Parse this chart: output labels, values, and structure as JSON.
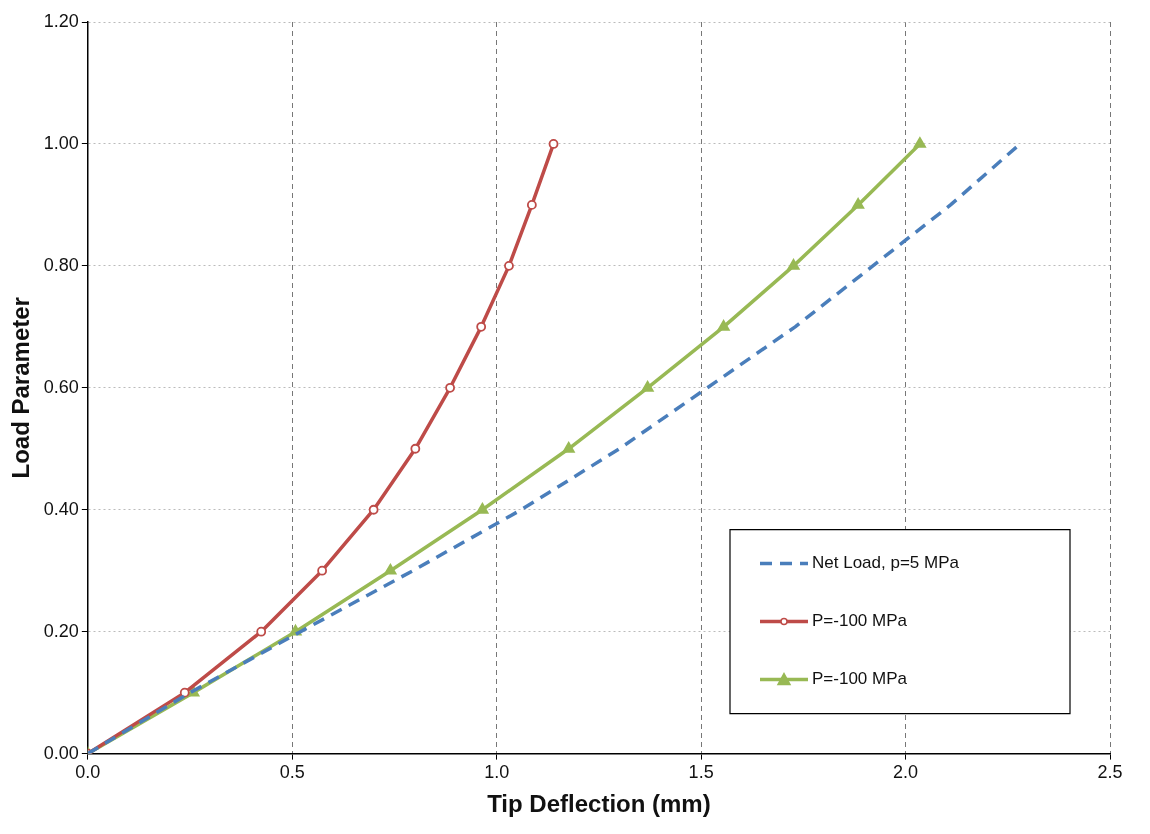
{
  "chart_data": {
    "type": "line",
    "xlabel": "Tip Deflection (mm)",
    "ylabel": "Load Parameter",
    "xlim": [
      0,
      2.5
    ],
    "ylim": [
      0,
      1.2
    ],
    "xticks": [
      {
        "value": 0,
        "label": "0.0"
      },
      {
        "value": 0.5,
        "label": "0.5"
      },
      {
        "value": 1,
        "label": "1.0"
      },
      {
        "value": 1.5,
        "label": "1.5"
      },
      {
        "value": 2,
        "label": "2.0"
      },
      {
        "value": 2.5,
        "label": "2.5"
      }
    ],
    "yticks": [
      {
        "value": 0,
        "label": "0.00"
      },
      {
        "value": 0.2,
        "label": "0.20"
      },
      {
        "value": 0.4,
        "label": "0.40"
      },
      {
        "value": 0.6,
        "label": "0.60"
      },
      {
        "value": 0.8,
        "label": "0.80"
      },
      {
        "value": 1,
        "label": "1.00"
      },
      {
        "value": 1.2,
        "label": "1.20"
      }
    ],
    "grid": true,
    "legend": "bottom right",
    "series": [
      {
        "name": "Net Load, p=5 MPa",
        "color": "#4a7ebb",
        "line_style": "dashed",
        "marker": "none",
        "x": [
          0,
          0.25,
          0.52,
          0.795,
          1.06,
          1.3,
          1.515,
          1.73,
          1.92,
          2.11,
          2.28
        ],
        "values": [
          0,
          0.1,
          0.2,
          0.3,
          0.4,
          0.5,
          0.6,
          0.7,
          0.8,
          0.9,
          1.0
        ]
      },
      {
        "name": "P=-100 MPa",
        "color": "#be4b48",
        "line_style": "solid",
        "marker": "circle",
        "x": [
          0,
          0.237,
          0.424,
          0.573,
          0.699,
          0.801,
          0.886,
          0.962,
          1.03,
          1.086,
          1.139
        ],
        "values": [
          0,
          0.1,
          0.2,
          0.3,
          0.4,
          0.5,
          0.6,
          0.7,
          0.8,
          0.9,
          1.0
        ]
      },
      {
        "name": "P=-100 MPa",
        "color": "#98b954",
        "line_style": "solid",
        "marker": "triangle",
        "x": [
          0,
          0.258,
          0.508,
          0.74,
          0.965,
          1.176,
          1.369,
          1.555,
          1.726,
          1.884,
          2.035
        ],
        "values": [
          0,
          0.1,
          0.2,
          0.3,
          0.4,
          0.5,
          0.6,
          0.7,
          0.8,
          0.9,
          1.0
        ]
      }
    ]
  }
}
